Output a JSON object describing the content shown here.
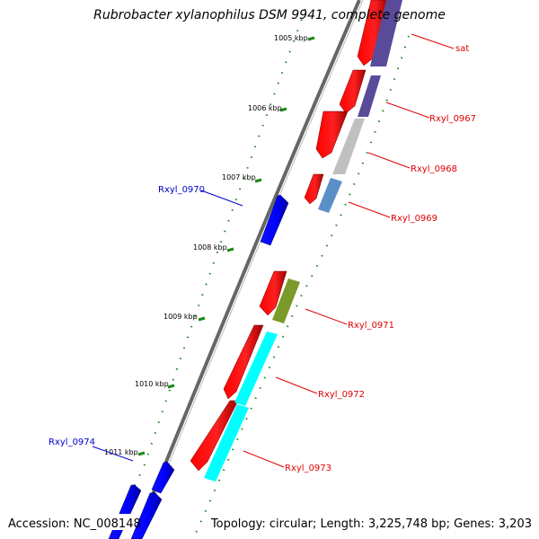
{
  "title": "Rubrobacter xylanophilus DSM 9941, complete genome",
  "footer": {
    "accession": "Accession: NC_008148",
    "topology": "Topology: circular; Length: 3,225,748 bp; Genes: 3,203"
  },
  "ticks": [
    {
      "label": "1005 kbp"
    },
    {
      "label": "1006 kbp"
    },
    {
      "label": "1007 kbp"
    },
    {
      "label": "1008 kbp"
    },
    {
      "label": "1009 kbp"
    },
    {
      "label": "1010 kbp"
    },
    {
      "label": "1011 kbp"
    }
  ],
  "gene_labels": [
    {
      "text": "sat",
      "color": "#e00000"
    },
    {
      "text": "Rxyl_0967",
      "color": "#e00000"
    },
    {
      "text": "Rxyl_0968",
      "color": "#e00000"
    },
    {
      "text": "Rxyl_0969",
      "color": "#e00000"
    },
    {
      "text": "Rxyl_0970",
      "color": "#0000cc"
    },
    {
      "text": "Rxyl_0971",
      "color": "#e00000"
    },
    {
      "text": "Rxyl_0972",
      "color": "#e00000"
    },
    {
      "text": "Rxyl_0973",
      "color": "#e00000"
    },
    {
      "text": "Rxyl_0974",
      "color": "#0000cc"
    }
  ],
  "colors": {
    "forward_strand": "#ff0000",
    "reverse_strand": "#0000ff",
    "tick_green": "#1a8a1a",
    "backbone": "#666666",
    "cog_purple": "#5a4a9a",
    "cog_gray": "#c0c0c0",
    "cog_steel": "#5a8fc8",
    "cog_olive": "#7a9a2a",
    "cog_cyan": "#00ffff"
  }
}
